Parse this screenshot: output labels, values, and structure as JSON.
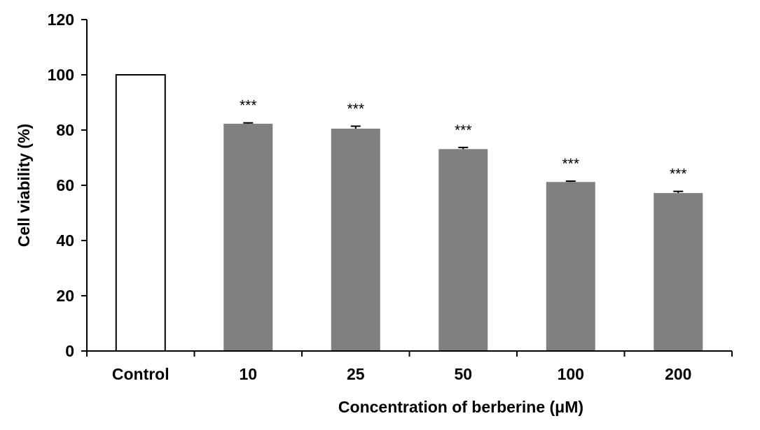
{
  "chart_data": {
    "type": "bar",
    "categories": [
      "Control",
      "10",
      "25",
      "50",
      "100",
      "200"
    ],
    "values": [
      100,
      82.3,
      80.5,
      73.1,
      61.2,
      57.2
    ],
    "errors": [
      0,
      0.3,
      0.9,
      0.6,
      0.3,
      0.6
    ],
    "significance": [
      "",
      "***",
      "***",
      "***",
      "***",
      "***"
    ],
    "xlabel": "Concentration of berberine (μM)",
    "ylabel": "Cell viability (%)",
    "ylim": [
      0,
      120
    ],
    "yticks": [
      0,
      20,
      40,
      60,
      80,
      100,
      120
    ],
    "bar_colors": [
      "#ffffff",
      "#808080",
      "#808080",
      "#808080",
      "#808080",
      "#808080"
    ],
    "bar_outline": "#000000",
    "grid": false,
    "legend": "none"
  }
}
